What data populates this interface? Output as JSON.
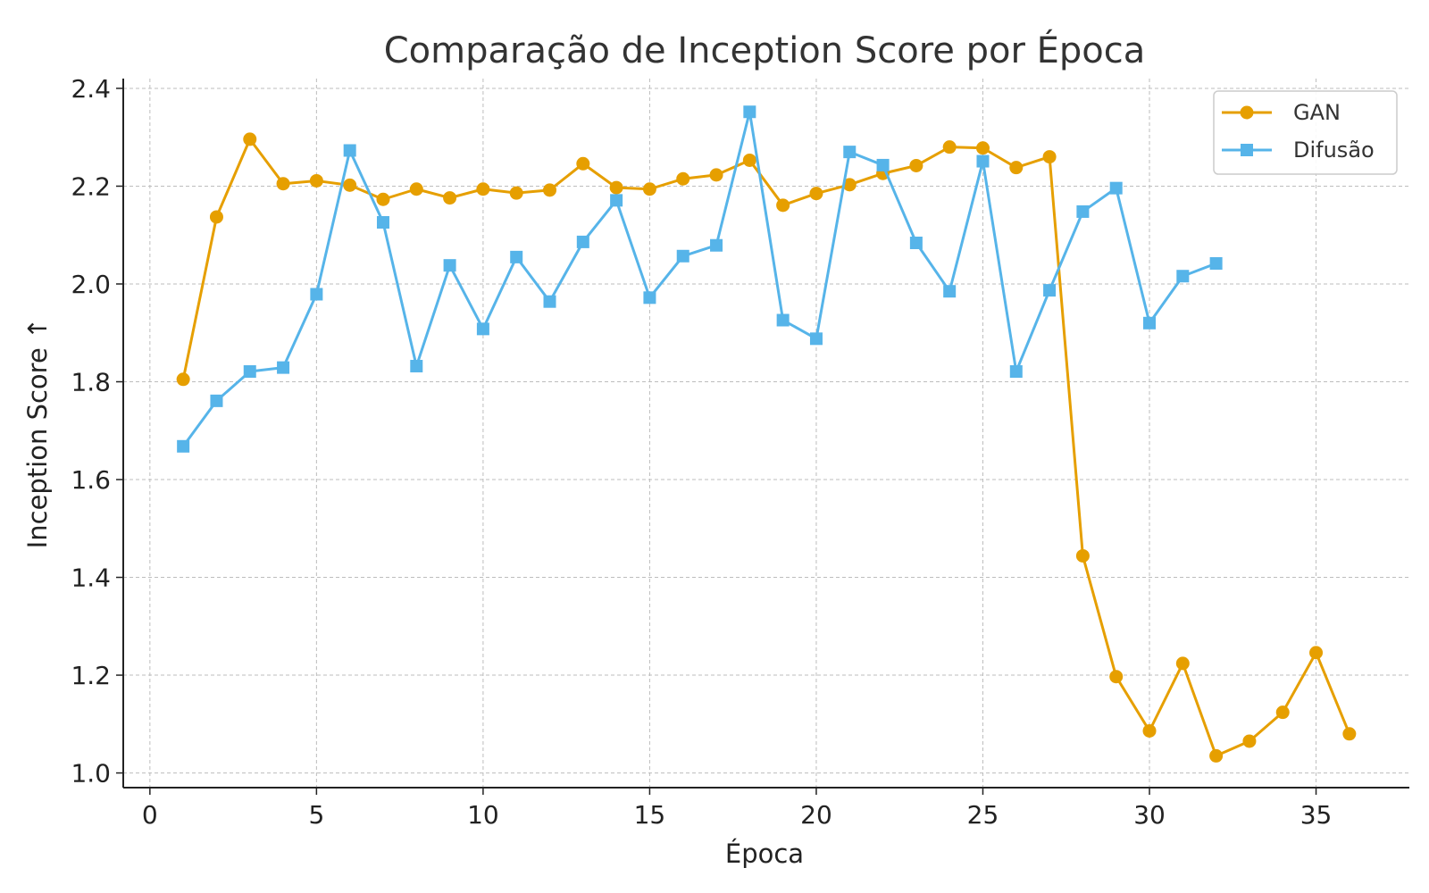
{
  "chart_data": {
    "type": "line",
    "title": "Comparação de Inception Score por Época",
    "xlabel": "Época",
    "ylabel": "Inception Score ↑",
    "xlim": [
      -0.8,
      37.8
    ],
    "ylim": [
      0.97,
      2.42
    ],
    "xticks": [
      0,
      5,
      10,
      15,
      20,
      25,
      30,
      35
    ],
    "yticks": [
      1.0,
      1.2,
      1.4,
      1.6,
      1.8,
      2.0,
      2.2,
      2.4
    ],
    "ytick_labels": [
      "1.0",
      "1.2",
      "1.4",
      "1.6",
      "1.8",
      "2.0",
      "2.2",
      "2.4"
    ],
    "grid": true,
    "legend_position": "top-right",
    "series": [
      {
        "name": "GAN",
        "color": "#E69F00",
        "marker": "circle",
        "x": [
          1,
          2,
          3,
          4,
          5,
          6,
          7,
          8,
          9,
          10,
          11,
          12,
          13,
          14,
          15,
          16,
          17,
          18,
          19,
          20,
          21,
          22,
          23,
          24,
          25,
          26,
          27,
          28,
          29,
          30,
          31,
          32,
          33,
          34,
          35,
          36
        ],
        "values": [
          1.805,
          2.137,
          2.296,
          2.205,
          2.211,
          2.202,
          2.173,
          2.194,
          2.176,
          2.194,
          2.186,
          2.192,
          2.246,
          2.197,
          2.194,
          2.215,
          2.223,
          2.253,
          2.161,
          2.185,
          2.203,
          2.226,
          2.242,
          2.28,
          2.278,
          2.238,
          2.26,
          1.444,
          1.197,
          1.086,
          1.224,
          1.035,
          1.065,
          1.124,
          1.246,
          1.08
        ]
      },
      {
        "name": "Difusão",
        "color": "#56B4E9",
        "marker": "square",
        "x": [
          1,
          2,
          3,
          4,
          5,
          6,
          7,
          8,
          9,
          10,
          11,
          12,
          13,
          14,
          15,
          16,
          17,
          18,
          19,
          20,
          21,
          22,
          23,
          24,
          25,
          26,
          27,
          28,
          29,
          30,
          31,
          32
        ],
        "values": [
          1.668,
          1.761,
          1.821,
          1.829,
          1.979,
          2.273,
          2.126,
          1.832,
          2.038,
          1.908,
          2.055,
          1.964,
          2.086,
          2.171,
          1.972,
          2.057,
          2.079,
          2.352,
          1.926,
          1.888,
          2.27,
          2.243,
          2.084,
          1.985,
          2.251,
          1.821,
          1.987,
          2.148,
          2.196,
          1.92,
          2.016,
          2.042
        ]
      }
    ]
  }
}
